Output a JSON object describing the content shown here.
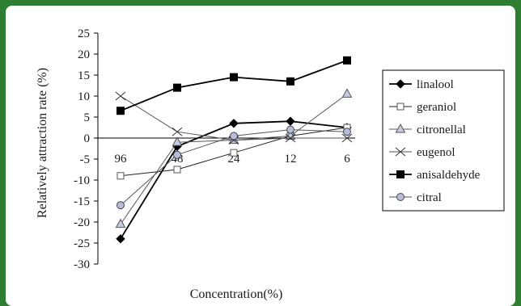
{
  "chart_data": {
    "type": "line",
    "title": "",
    "xlabel": "Concentration(%)",
    "ylabel": "Relatively attraction rate (%)",
    "categories": [
      "96",
      "48",
      "24",
      "12",
      "6"
    ],
    "ylim": [
      -30,
      25
    ],
    "yticks": [
      25,
      20,
      15,
      10,
      5,
      0,
      -5,
      -10,
      -15,
      -20,
      -25,
      -30
    ],
    "grid": false,
    "legend_position": "right",
    "series": [
      {
        "name": "linalool",
        "marker": "diamond-filled",
        "values": [
          -24,
          -2,
          3.5,
          4,
          2.5
        ]
      },
      {
        "name": "geraniol",
        "marker": "square-open",
        "values": [
          -9,
          -7.5,
          -3.5,
          0.5,
          2.5
        ]
      },
      {
        "name": "citronellal",
        "marker": "triangle-open",
        "values": [
          -20.5,
          -1,
          -0.5,
          0.5,
          10.5
        ]
      },
      {
        "name": "eugenol",
        "marker": "x",
        "values": [
          10,
          1.5,
          -0.5,
          0,
          0
        ]
      },
      {
        "name": "anisaldehyde",
        "marker": "square-filled",
        "values": [
          6.5,
          12,
          14.5,
          13.5,
          18.5
        ]
      },
      {
        "name": "citral",
        "marker": "circle-open",
        "values": [
          -16,
          -4,
          0.5,
          2,
          1.5
        ]
      }
    ]
  }
}
